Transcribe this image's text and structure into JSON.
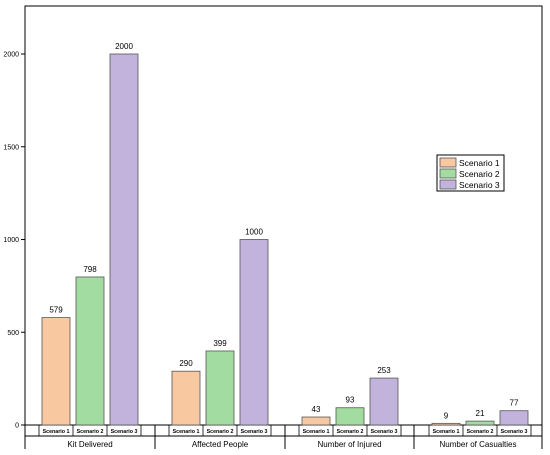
{
  "chart_data": {
    "type": "bar",
    "title": "",
    "xlabel": "",
    "ylabel": "",
    "ylim": [
      0,
      2000
    ],
    "yticks": [
      0,
      500,
      1000,
      1500,
      2000
    ],
    "grid": false,
    "legend_position": "right",
    "groups": [
      "Kit Delivered",
      "Affected People",
      "Number of Injured",
      "Number of Casualties"
    ],
    "series": [
      {
        "name": "Scenario 1",
        "color": "#f8c9a0",
        "values": [
          579,
          290,
          43,
          9
        ]
      },
      {
        "name": "Scenario 2",
        "color": "#a3dca0",
        "values": [
          798,
          399,
          93,
          21
        ]
      },
      {
        "name": "Scenario 3",
        "color": "#c2b3dc",
        "values": [
          2000,
          1000,
          253,
          77
        ]
      }
    ]
  }
}
